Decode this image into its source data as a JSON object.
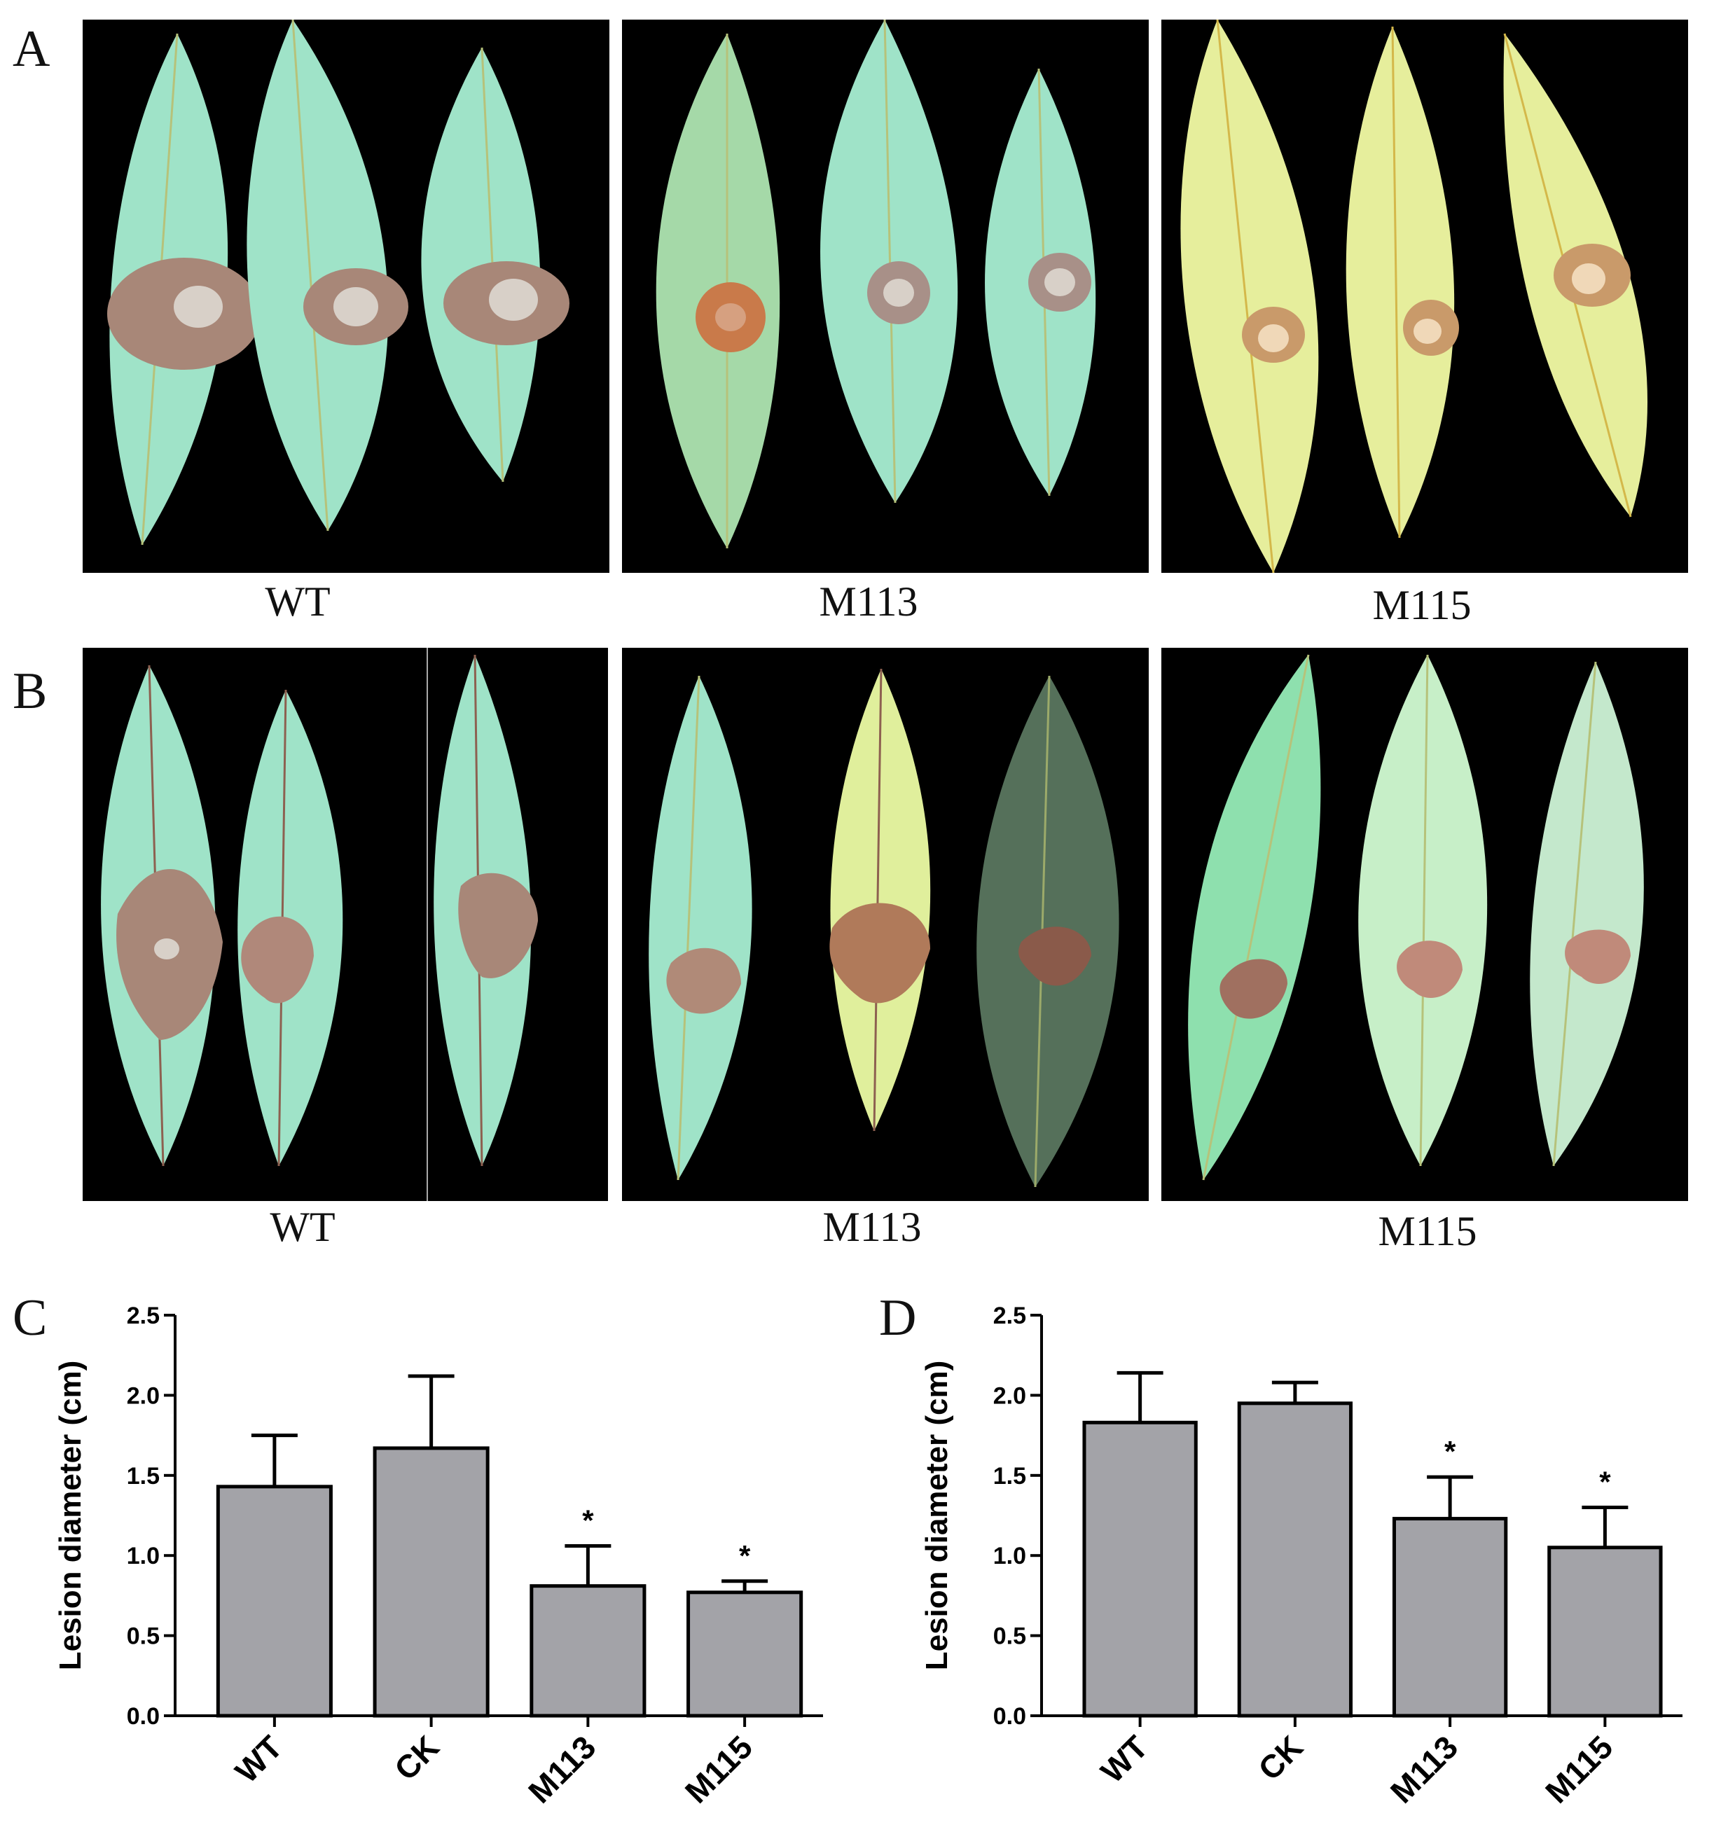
{
  "panels": {
    "A": {
      "letter": "A",
      "captions": [
        "WT",
        "M113",
        "M115"
      ]
    },
    "B": {
      "letter": "B",
      "captions": [
        "WT",
        "M113",
        "M115"
      ]
    },
    "C": {
      "letter": "C"
    },
    "D": {
      "letter": "D"
    }
  },
  "colors": {
    "bar_fill": "#a3a3a8",
    "leaf_blue_green": "#9fe3c8",
    "leaf_yellow": "#e6ee9c",
    "lesion_brown": "#a88778",
    "lesion_orange": "#c97a4a",
    "photo_bg": "#000000"
  },
  "chart_data": [
    {
      "type": "bar",
      "panel": "C",
      "categories": [
        "WT",
        "CK",
        "M113",
        "M115"
      ],
      "values": [
        1.43,
        1.67,
        0.81,
        0.77
      ],
      "errors": [
        0.32,
        0.45,
        0.25,
        0.07
      ],
      "significance": [
        "",
        "",
        "*",
        "*"
      ],
      "ylabel": "Lesion diameter (cm)",
      "ylim": [
        0,
        2.5
      ],
      "yticks": [
        "0.0",
        "0.5",
        "1.0",
        "1.5",
        "2.0",
        "2.5"
      ],
      "grid": false
    },
    {
      "type": "bar",
      "panel": "D",
      "categories": [
        "WT",
        "CK",
        "M113",
        "M115"
      ],
      "values": [
        1.83,
        1.95,
        1.23,
        1.05
      ],
      "errors": [
        0.31,
        0.13,
        0.26,
        0.25
      ],
      "significance": [
        "",
        "",
        "*",
        "*"
      ],
      "ylabel": "Lesion diameter (cm)",
      "ylim": [
        0,
        2.5
      ],
      "yticks": [
        "0.0",
        "0.5",
        "1.0",
        "1.5",
        "2.0",
        "2.5"
      ],
      "grid": false
    }
  ]
}
